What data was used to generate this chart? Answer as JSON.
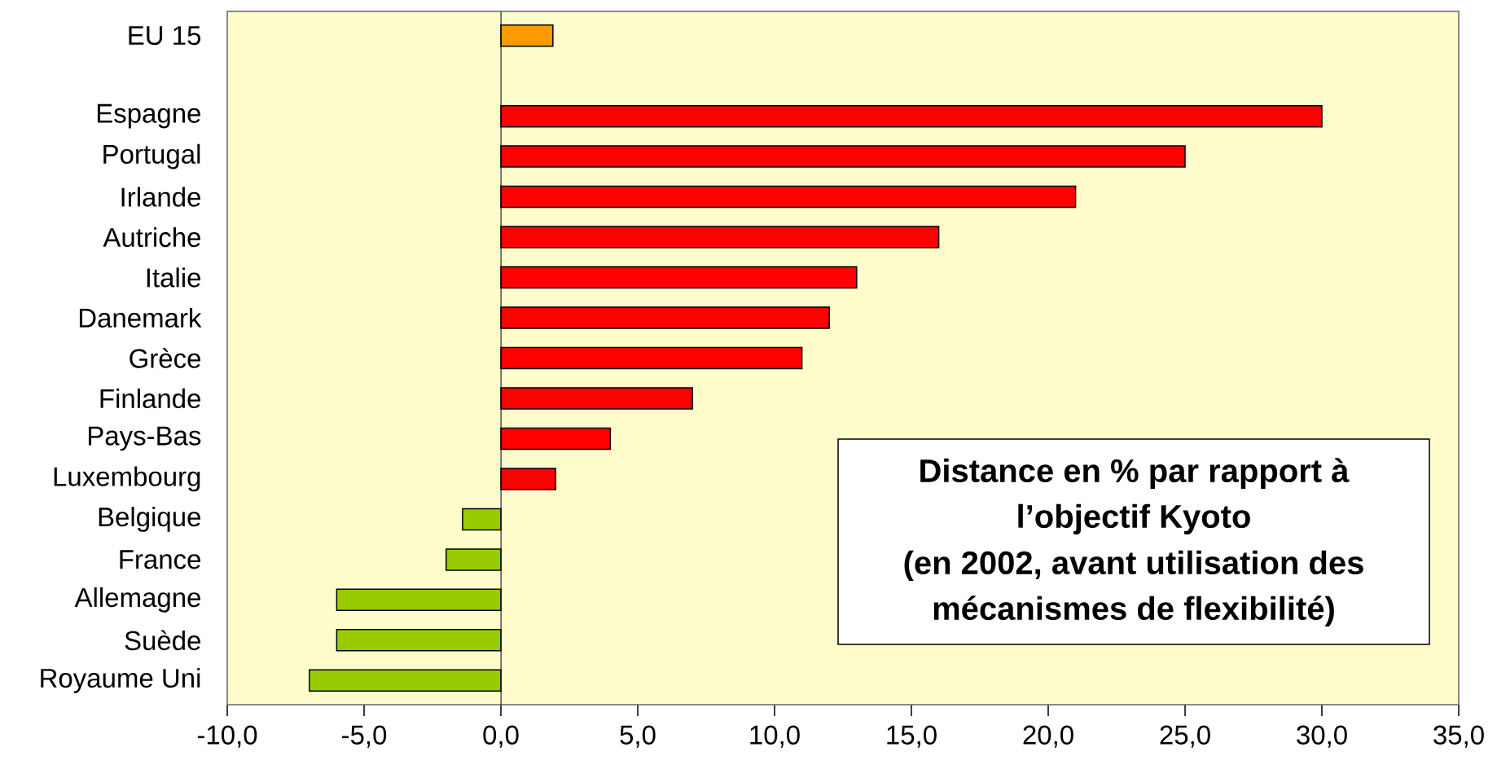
{
  "chart_data": {
    "type": "bar",
    "orientation": "horizontal",
    "title": "Distance en % par rapport à l’objectif Kyoto",
    "subtitle": "(en 2002, avant utilisation des mécanismes de flexibilité)",
    "categories": [
      "EU 15",
      null,
      "Espagne",
      "Portugal",
      "Irlande",
      "Autriche",
      "Italie",
      "Danemark",
      "Grèce",
      "Finlande",
      "Pays-Bas",
      "Luxembourg",
      "Belgique",
      "France",
      "Allemagne",
      "Suède",
      "Royaume Uni"
    ],
    "values": [
      1.9,
      null,
      30,
      25,
      21,
      16,
      13,
      12,
      11,
      7,
      4,
      2,
      -1.4,
      -2,
      -6,
      -6,
      -7
    ],
    "colors": [
      "#ff9900",
      null,
      "#ff0000",
      "#ff0000",
      "#ff0000",
      "#ff0000",
      "#ff0000",
      "#ff0000",
      "#ff0000",
      "#ff0000",
      "#ff0000",
      "#ff0000",
      "#99cc00",
      "#99cc00",
      "#99cc00",
      "#99cc00",
      "#99cc00"
    ],
    "xlim": [
      -10,
      35
    ],
    "xticks": [
      {
        "value": -10,
        "label": "-10,0"
      },
      {
        "value": -5,
        "label": "-5,0"
      },
      {
        "value": 0,
        "label": "0,0"
      },
      {
        "value": 5,
        "label": "5,0"
      },
      {
        "value": 10,
        "label": "10,0"
      },
      {
        "value": 15,
        "label": "15,0"
      },
      {
        "value": 20,
        "label": "20,0"
      },
      {
        "value": 25,
        "label": "25,0"
      },
      {
        "value": 30,
        "label": "30,0"
      },
      {
        "value": 35,
        "label": "35,0"
      }
    ],
    "tick_labels": true
  }
}
